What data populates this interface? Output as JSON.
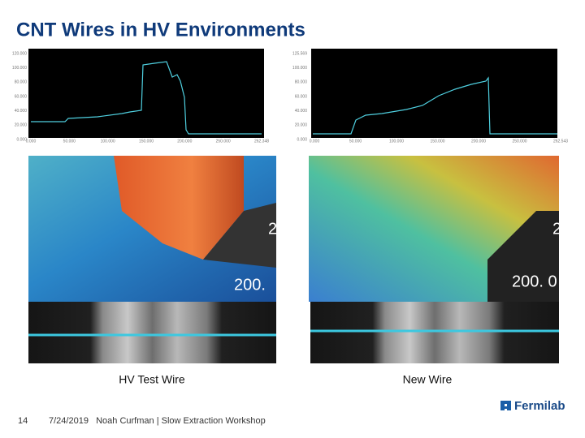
{
  "header": {
    "title": "CNT Wires in HV Environments"
  },
  "panels": [
    {
      "profile": {
        "y_labels": [
          "120.000",
          "100.000",
          "80.000",
          "60.000",
          "40.000",
          "20.000",
          "0.000"
        ],
        "x_labels": [
          "0.000",
          "50.000",
          "100.000",
          "150.000",
          "200.000",
          "250.000",
          "262.348"
        ]
      },
      "overlay_labels": [
        "2",
        "200."
      ],
      "caption": "HV Test Wire"
    },
    {
      "profile": {
        "y_labels": [
          "125.569",
          "100.000",
          "80.000",
          "60.000",
          "40.000",
          "20.000",
          "0.000"
        ],
        "x_labels": [
          "0.000",
          "50.000",
          "100.000",
          "150.000",
          "200.000",
          "250.000",
          "262.543"
        ]
      },
      "overlay_labels": [
        "2",
        "200. 0"
      ],
      "caption": "New Wire"
    }
  ],
  "footer": {
    "page_number": "14",
    "text": "7/24/2019   Noah Curfman | Slow Extraction Workshop",
    "logo": "Fermilab"
  }
}
